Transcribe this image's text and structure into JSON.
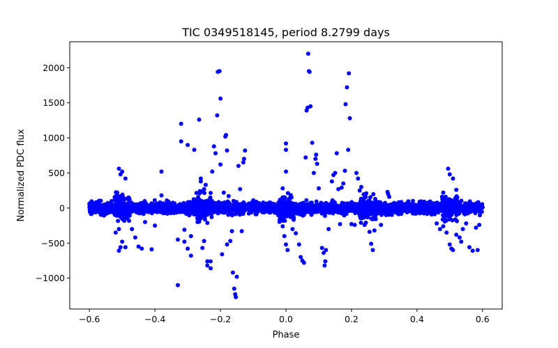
{
  "chart_data": {
    "type": "scatter",
    "title": "TIC 0349518145, period 8.2799 days",
    "xlabel": "Phase",
    "ylabel": "Normalized PDC flux",
    "xlim": [
      -0.66,
      0.66
    ],
    "ylim": [
      -1440,
      2370
    ],
    "xticks": [
      -0.6,
      -0.4,
      -0.2,
      0.0,
      0.2,
      0.4,
      0.6
    ],
    "xtick_labels": [
      "−0.6",
      "−0.4",
      "−0.2",
      "0.0",
      "0.2",
      "0.4",
      "0.6"
    ],
    "yticks": [
      -1000,
      -500,
      0,
      500,
      1000,
      1500,
      2000
    ],
    "ytick_labels": [
      "−1000",
      "−500",
      "0",
      "500",
      "1000",
      "1500",
      "2000"
    ],
    "grid": false,
    "marker_color": "#0000ff",
    "baseline": {
      "x_range": [
        -0.6,
        0.6
      ],
      "typical_scatter": 40,
      "note": "dense band of thousands of points around 0"
    },
    "outliers": [
      {
        "x": -0.51,
        "y": 560
      },
      {
        "x": -0.505,
        "y": 480
      },
      {
        "x": -0.5,
        "y": 520
      },
      {
        "x": -0.49,
        "y": 420
      },
      {
        "x": -0.515,
        "y": 220
      },
      {
        "x": -0.51,
        "y": -300
      },
      {
        "x": -0.5,
        "y": -480
      },
      {
        "x": -0.505,
        "y": -560
      },
      {
        "x": -0.51,
        "y": -610
      },
      {
        "x": -0.49,
        "y": -560
      },
      {
        "x": -0.52,
        "y": -350
      },
      {
        "x": -0.47,
        "y": -300
      },
      {
        "x": -0.46,
        "y": -420
      },
      {
        "x": -0.45,
        "y": -550
      },
      {
        "x": -0.44,
        "y": -580
      },
      {
        "x": -0.43,
        "y": -200
      },
      {
        "x": -0.41,
        "y": -590
      },
      {
        "x": -0.4,
        "y": -250
      },
      {
        "x": -0.38,
        "y": 180
      },
      {
        "x": -0.38,
        "y": 520
      },
      {
        "x": -0.33,
        "y": -1100
      },
      {
        "x": -0.33,
        "y": -450
      },
      {
        "x": -0.32,
        "y": 1200
      },
      {
        "x": -0.32,
        "y": 950
      },
      {
        "x": -0.31,
        "y": -310
      },
      {
        "x": -0.31,
        "y": -480
      },
      {
        "x": -0.3,
        "y": 900
      },
      {
        "x": -0.3,
        "y": -580
      },
      {
        "x": -0.29,
        "y": -680
      },
      {
        "x": -0.29,
        "y": -400
      },
      {
        "x": -0.28,
        "y": 830
      },
      {
        "x": -0.27,
        "y": -200
      },
      {
        "x": -0.265,
        "y": 1260
      },
      {
        "x": -0.26,
        "y": 420
      },
      {
        "x": -0.26,
        "y": 380
      },
      {
        "x": -0.255,
        "y": -570
      },
      {
        "x": -0.25,
        "y": 270
      },
      {
        "x": -0.25,
        "y": -470
      },
      {
        "x": -0.245,
        "y": 330
      },
      {
        "x": -0.24,
        "y": -760
      },
      {
        "x": -0.24,
        "y": -820
      },
      {
        "x": -0.23,
        "y": -760
      },
      {
        "x": -0.23,
        "y": -860
      },
      {
        "x": -0.225,
        "y": 520
      },
      {
        "x": -0.22,
        "y": 880
      },
      {
        "x": -0.215,
        "y": 780
      },
      {
        "x": -0.21,
        "y": 1320
      },
      {
        "x": -0.208,
        "y": 1940
      },
      {
        "x": -0.203,
        "y": 1950
      },
      {
        "x": -0.2,
        "y": 1560
      },
      {
        "x": -0.2,
        "y": 620
      },
      {
        "x": -0.195,
        "y": -660
      },
      {
        "x": -0.19,
        "y": 220
      },
      {
        "x": -0.185,
        "y": 1020
      },
      {
        "x": -0.183,
        "y": 1040
      },
      {
        "x": -0.18,
        "y": 820
      },
      {
        "x": -0.18,
        "y": -520
      },
      {
        "x": -0.175,
        "y": 170
      },
      {
        "x": -0.17,
        "y": -470
      },
      {
        "x": -0.165,
        "y": -330
      },
      {
        "x": -0.162,
        "y": -920
      },
      {
        "x": -0.158,
        "y": -1150
      },
      {
        "x": -0.155,
        "y": -1230
      },
      {
        "x": -0.153,
        "y": -1270
      },
      {
        "x": -0.15,
        "y": -980
      },
      {
        "x": -0.145,
        "y": 600
      },
      {
        "x": -0.14,
        "y": 270
      },
      {
        "x": -0.135,
        "y": -330
      },
      {
        "x": -0.13,
        "y": 650
      },
      {
        "x": -0.128,
        "y": 700
      },
      {
        "x": -0.125,
        "y": 820
      },
      {
        "x": -0.01,
        "y": 280
      },
      {
        "x": -0.01,
        "y": -260
      },
      {
        "x": 0.0,
        "y": 920
      },
      {
        "x": 0.0,
        "y": 830
      },
      {
        "x": 0.0,
        "y": 520
      },
      {
        "x": 0.0,
        "y": -520
      },
      {
        "x": 0.005,
        "y": -600
      },
      {
        "x": -0.005,
        "y": -400
      },
      {
        "x": 0.02,
        "y": -300
      },
      {
        "x": 0.03,
        "y": -360
      },
      {
        "x": 0.04,
        "y": -520
      },
      {
        "x": 0.045,
        "y": -700
      },
      {
        "x": 0.05,
        "y": -750
      },
      {
        "x": 0.055,
        "y": -780
      },
      {
        "x": 0.06,
        "y": 720
      },
      {
        "x": 0.063,
        "y": 1390
      },
      {
        "x": 0.066,
        "y": 1430
      },
      {
        "x": 0.068,
        "y": 2200
      },
      {
        "x": 0.07,
        "y": 1950
      },
      {
        "x": 0.072,
        "y": 1940
      },
      {
        "x": 0.075,
        "y": 1450
      },
      {
        "x": 0.08,
        "y": 930
      },
      {
        "x": 0.085,
        "y": 500
      },
      {
        "x": 0.09,
        "y": 700
      },
      {
        "x": 0.092,
        "y": 760
      },
      {
        "x": 0.095,
        "y": 630
      },
      {
        "x": 0.1,
        "y": 280
      },
      {
        "x": 0.11,
        "y": -570
      },
      {
        "x": 0.115,
        "y": -640
      },
      {
        "x": 0.118,
        "y": -820
      },
      {
        "x": 0.12,
        "y": -760
      },
      {
        "x": 0.122,
        "y": -600
      },
      {
        "x": 0.13,
        "y": -300
      },
      {
        "x": 0.14,
        "y": 380
      },
      {
        "x": 0.145,
        "y": 470
      },
      {
        "x": 0.15,
        "y": 500
      },
      {
        "x": 0.155,
        "y": 780
      },
      {
        "x": 0.16,
        "y": 270
      },
      {
        "x": 0.165,
        "y": -230
      },
      {
        "x": 0.17,
        "y": 290
      },
      {
        "x": 0.175,
        "y": 350
      },
      {
        "x": 0.18,
        "y": 530
      },
      {
        "x": 0.182,
        "y": 1480
      },
      {
        "x": 0.186,
        "y": 1720
      },
      {
        "x": 0.19,
        "y": 830
      },
      {
        "x": 0.192,
        "y": 1920
      },
      {
        "x": 0.195,
        "y": 1280
      },
      {
        "x": 0.2,
        "y": -230
      },
      {
        "x": 0.21,
        "y": -240
      },
      {
        "x": 0.215,
        "y": 500
      },
      {
        "x": 0.22,
        "y": 420
      },
      {
        "x": 0.225,
        "y": 250
      },
      {
        "x": 0.23,
        "y": 300
      },
      {
        "x": 0.24,
        "y": -240
      },
      {
        "x": 0.255,
        "y": -340
      },
      {
        "x": 0.26,
        "y": -510
      },
      {
        "x": 0.265,
        "y": -600
      },
      {
        "x": 0.27,
        "y": -320
      },
      {
        "x": 0.29,
        "y": -240
      },
      {
        "x": 0.31,
        "y": 230
      },
      {
        "x": 0.312,
        "y": 200
      },
      {
        "x": 0.315,
        "y": 160
      },
      {
        "x": 0.46,
        "y": -220
      },
      {
        "x": 0.47,
        "y": -300
      },
      {
        "x": 0.48,
        "y": 220
      },
      {
        "x": 0.48,
        "y": -260
      },
      {
        "x": 0.49,
        "y": -350
      },
      {
        "x": 0.495,
        "y": 560
      },
      {
        "x": 0.5,
        "y": 480
      },
      {
        "x": 0.5,
        "y": -520
      },
      {
        "x": 0.505,
        "y": -580
      },
      {
        "x": 0.51,
        "y": 420
      },
      {
        "x": 0.51,
        "y": -600
      },
      {
        "x": 0.52,
        "y": 260
      },
      {
        "x": 0.52,
        "y": -380
      },
      {
        "x": 0.53,
        "y": -420
      },
      {
        "x": 0.535,
        "y": -480
      },
      {
        "x": 0.54,
        "y": -300
      },
      {
        "x": 0.55,
        "y": -220
      },
      {
        "x": 0.56,
        "y": -560
      },
      {
        "x": 0.57,
        "y": -610
      },
      {
        "x": 0.58,
        "y": -280
      },
      {
        "x": 0.585,
        "y": -600
      },
      {
        "x": 0.59,
        "y": -240
      }
    ]
  }
}
